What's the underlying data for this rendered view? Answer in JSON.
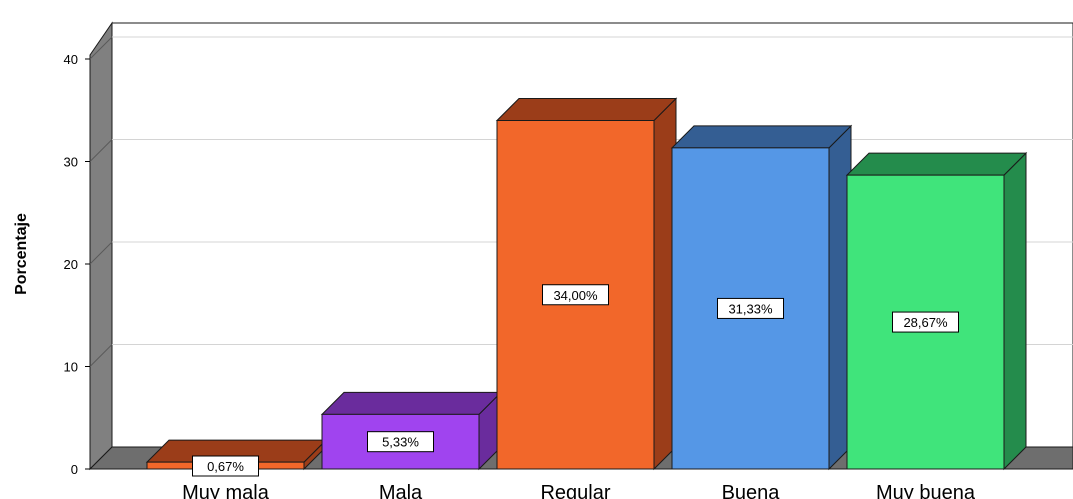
{
  "chart_data": {
    "type": "bar",
    "categories": [
      "Muy mala",
      "Mala",
      "Regular",
      "Buena",
      "Muy buena"
    ],
    "values": [
      0.67,
      5.33,
      34.0,
      31.33,
      28.67
    ],
    "data_labels": [
      "0,67%",
      "5,33%",
      "34,00%",
      "31,33%",
      "28,67%"
    ],
    "title": "",
    "xlabel": "",
    "ylabel": "Porcentaje",
    "ylim": [
      0,
      40
    ],
    "yticks": [
      0,
      10,
      20,
      30,
      40
    ],
    "grid": true,
    "style": "3d",
    "colors": {
      "front": [
        "#f2672a",
        "#a044ef",
        "#f2672a",
        "#5597e6",
        "#40e47b"
      ],
      "top": [
        "#9b3d19",
        "#6a2c9d",
        "#9b3d19",
        "#345e93",
        "#248c4c"
      ],
      "side": [
        "#9b3d19",
        "#6a2c9d",
        "#9b3d19",
        "#345e93",
        "#248c4c"
      ],
      "floor": "#6e6e6e",
      "back_wall_edge": "#808080",
      "gridline": "#d4d4d4"
    }
  }
}
